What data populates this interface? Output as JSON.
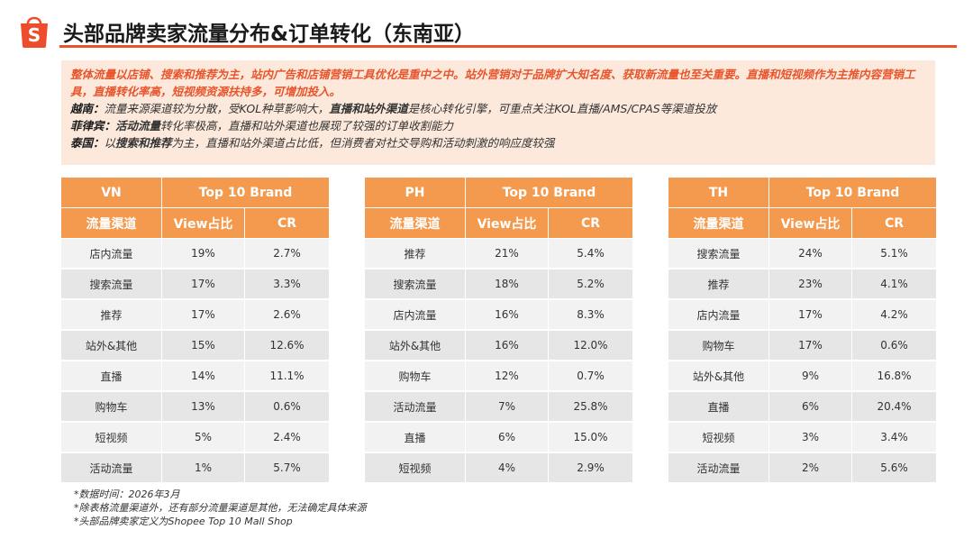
{
  "header": {
    "logo_icon": "shopee-bag-icon",
    "logo_letter": "S",
    "title": "头部品牌卖家流量分布&订单转化（东南亚）",
    "accent_color": "#e8542b"
  },
  "summary": {
    "intro": "整体流量以店铺、搜索和推荐为主，站内广告和店铺营销工具优化是重中之中。站外营销对于品牌扩大知名度、获取新流量也至关重要。直播和短视频作为主推内容营销工具，直播转化率高，短视频资源扶持多，可增加投入。",
    "vn_label": "越南：",
    "vn_text1": "流量来源渠道较为分散，受KOL种草影响大，",
    "vn_bold": "直播和站外渠道",
    "vn_text2": "是核心转化引擎，可重点关注KOL直播/AMS/CPAS等渠道投放",
    "ph_label": "菲律宾：",
    "ph_bold": "活动流量",
    "ph_text": "转化率极高，直播和站外渠道也展现了较强的订单收割能力",
    "th_label": "泰国：",
    "th_text1": "以",
    "th_bold": "搜索和推荐",
    "th_text2": "为主，直播和站外渠道占比低，但消费者对社交导购和活动刺激的响应度较强"
  },
  "tables": [
    {
      "market": "VN",
      "group_header": "Top 10 Brand",
      "col_channel": "流量渠道",
      "col_view": "View占比",
      "col_cr": "CR",
      "rows": [
        [
          "店内流量",
          "19%",
          "2.7%"
        ],
        [
          "搜索流量",
          "17%",
          "3.3%"
        ],
        [
          "推荐",
          "17%",
          "2.6%"
        ],
        [
          "站外&其他",
          "15%",
          "12.6%"
        ],
        [
          "直播",
          "14%",
          "11.1%"
        ],
        [
          "购物车",
          "13%",
          "0.6%"
        ],
        [
          "短视频",
          "5%",
          "2.4%"
        ],
        [
          "活动流量",
          "1%",
          "5.7%"
        ]
      ]
    },
    {
      "market": "PH",
      "group_header": "Top 10 Brand",
      "col_channel": "流量渠道",
      "col_view": "View占比",
      "col_cr": "CR",
      "rows": [
        [
          "推荐",
          "21%",
          "5.4%"
        ],
        [
          "搜索流量",
          "18%",
          "5.2%"
        ],
        [
          "店内流量",
          "16%",
          "8.3%"
        ],
        [
          "站外&其他",
          "16%",
          "12.0%"
        ],
        [
          "购物车",
          "12%",
          "0.7%"
        ],
        [
          "活动流量",
          "7%",
          "25.8%"
        ],
        [
          "直播",
          "6%",
          "15.0%"
        ],
        [
          "短视频",
          "4%",
          "2.9%"
        ]
      ]
    },
    {
      "market": "TH",
      "group_header": "Top 10 Brand",
      "col_channel": "流量渠道",
      "col_view": "View占比",
      "col_cr": "CR",
      "rows": [
        [
          "搜索流量",
          "24%",
          "5.1%"
        ],
        [
          "推荐",
          "23%",
          "4.1%"
        ],
        [
          "店内流量",
          "17%",
          "4.2%"
        ],
        [
          "购物车",
          "17%",
          "0.6%"
        ],
        [
          "站外&其他",
          "9%",
          "16.8%"
        ],
        [
          "直播",
          "6%",
          "20.4%"
        ],
        [
          "短视频",
          "3%",
          "3.4%"
        ],
        [
          "活动流量",
          "2%",
          "5.6%"
        ]
      ]
    }
  ],
  "notes": [
    "*数据时间：2026年3月",
    "*除表格流量渠道外，还有部分流量渠道是其他，无法确定具体来源",
    "*头部品牌卖家定义为Shopee Top 10 Mall Shop"
  ]
}
